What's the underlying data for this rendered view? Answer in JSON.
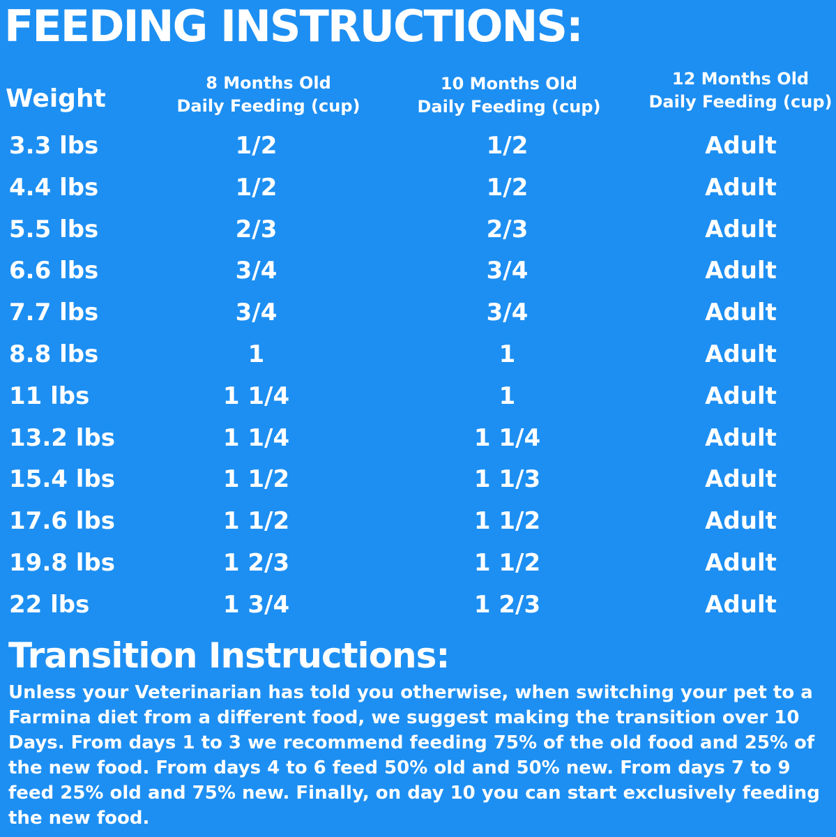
{
  "title": "FEEDING INSTRUCTIONS:",
  "headers": {
    "weight": "Weight",
    "col8": {
      "line1": "8 Months Old",
      "line2": "Daily Feeding (cup)"
    },
    "col10": {
      "line1": "10 Months Old",
      "line2": "Daily Feeding (cup)"
    },
    "col12": {
      "line1": "12 Months Old",
      "line2": "Daily Feeding (cup)"
    }
  },
  "rows": [
    {
      "weight": "3.3 lbs",
      "m8": "1/2",
      "m10": "1/2",
      "m12": "Adult"
    },
    {
      "weight": "4.4 lbs",
      "m8": "1/2",
      "m10": "1/2",
      "m12": "Adult"
    },
    {
      "weight": "5.5 lbs",
      "m8": "2/3",
      "m10": "2/3",
      "m12": "Adult"
    },
    {
      "weight": "6.6 lbs",
      "m8": "3/4",
      "m10": "3/4",
      "m12": "Adult"
    },
    {
      "weight": "7.7 lbs",
      "m8": "3/4",
      "m10": "3/4",
      "m12": "Adult"
    },
    {
      "weight": "8.8 lbs",
      "m8": "1",
      "m10": "1",
      "m12": "Adult"
    },
    {
      "weight": "11 lbs",
      "m8": "1 1/4",
      "m10": "1",
      "m12": "Adult"
    },
    {
      "weight": "13.2 lbs",
      "m8": "1 1/4",
      "m10": "1 1/4",
      "m12": "Adult"
    },
    {
      "weight": "15.4 lbs",
      "m8": "1 1/2",
      "m10": "1 1/3",
      "m12": "Adult"
    },
    {
      "weight": "17.6 lbs",
      "m8": "1 1/2",
      "m10": "1 1/2",
      "m12": "Adult"
    },
    {
      "weight": "19.8 lbs",
      "m8": "1 2/3",
      "m10": "1 1/2",
      "m12": "Adult"
    },
    {
      "weight": "22 lbs",
      "m8": "1 3/4",
      "m10": "1 2/3",
      "m12": "Adult"
    }
  ],
  "transition": {
    "title": "Transition Instructions:",
    "text": "Unless your Veterinarian has told you otherwise, when switching your pet to a Farmina diet from a different food, we suggest making the transition over 10 Days. From days 1 to 3 we recommend feeding 75% of the old food and 25% of the new food. From days 4 to 6 feed 50% old and 50% new. From days 7 to 9 feed 25% old and 75% new. Finally, on day 10 you can start exclusively feeding the new food."
  },
  "colors": {
    "background": "#1d8ff2",
    "text": "#ffffff"
  }
}
